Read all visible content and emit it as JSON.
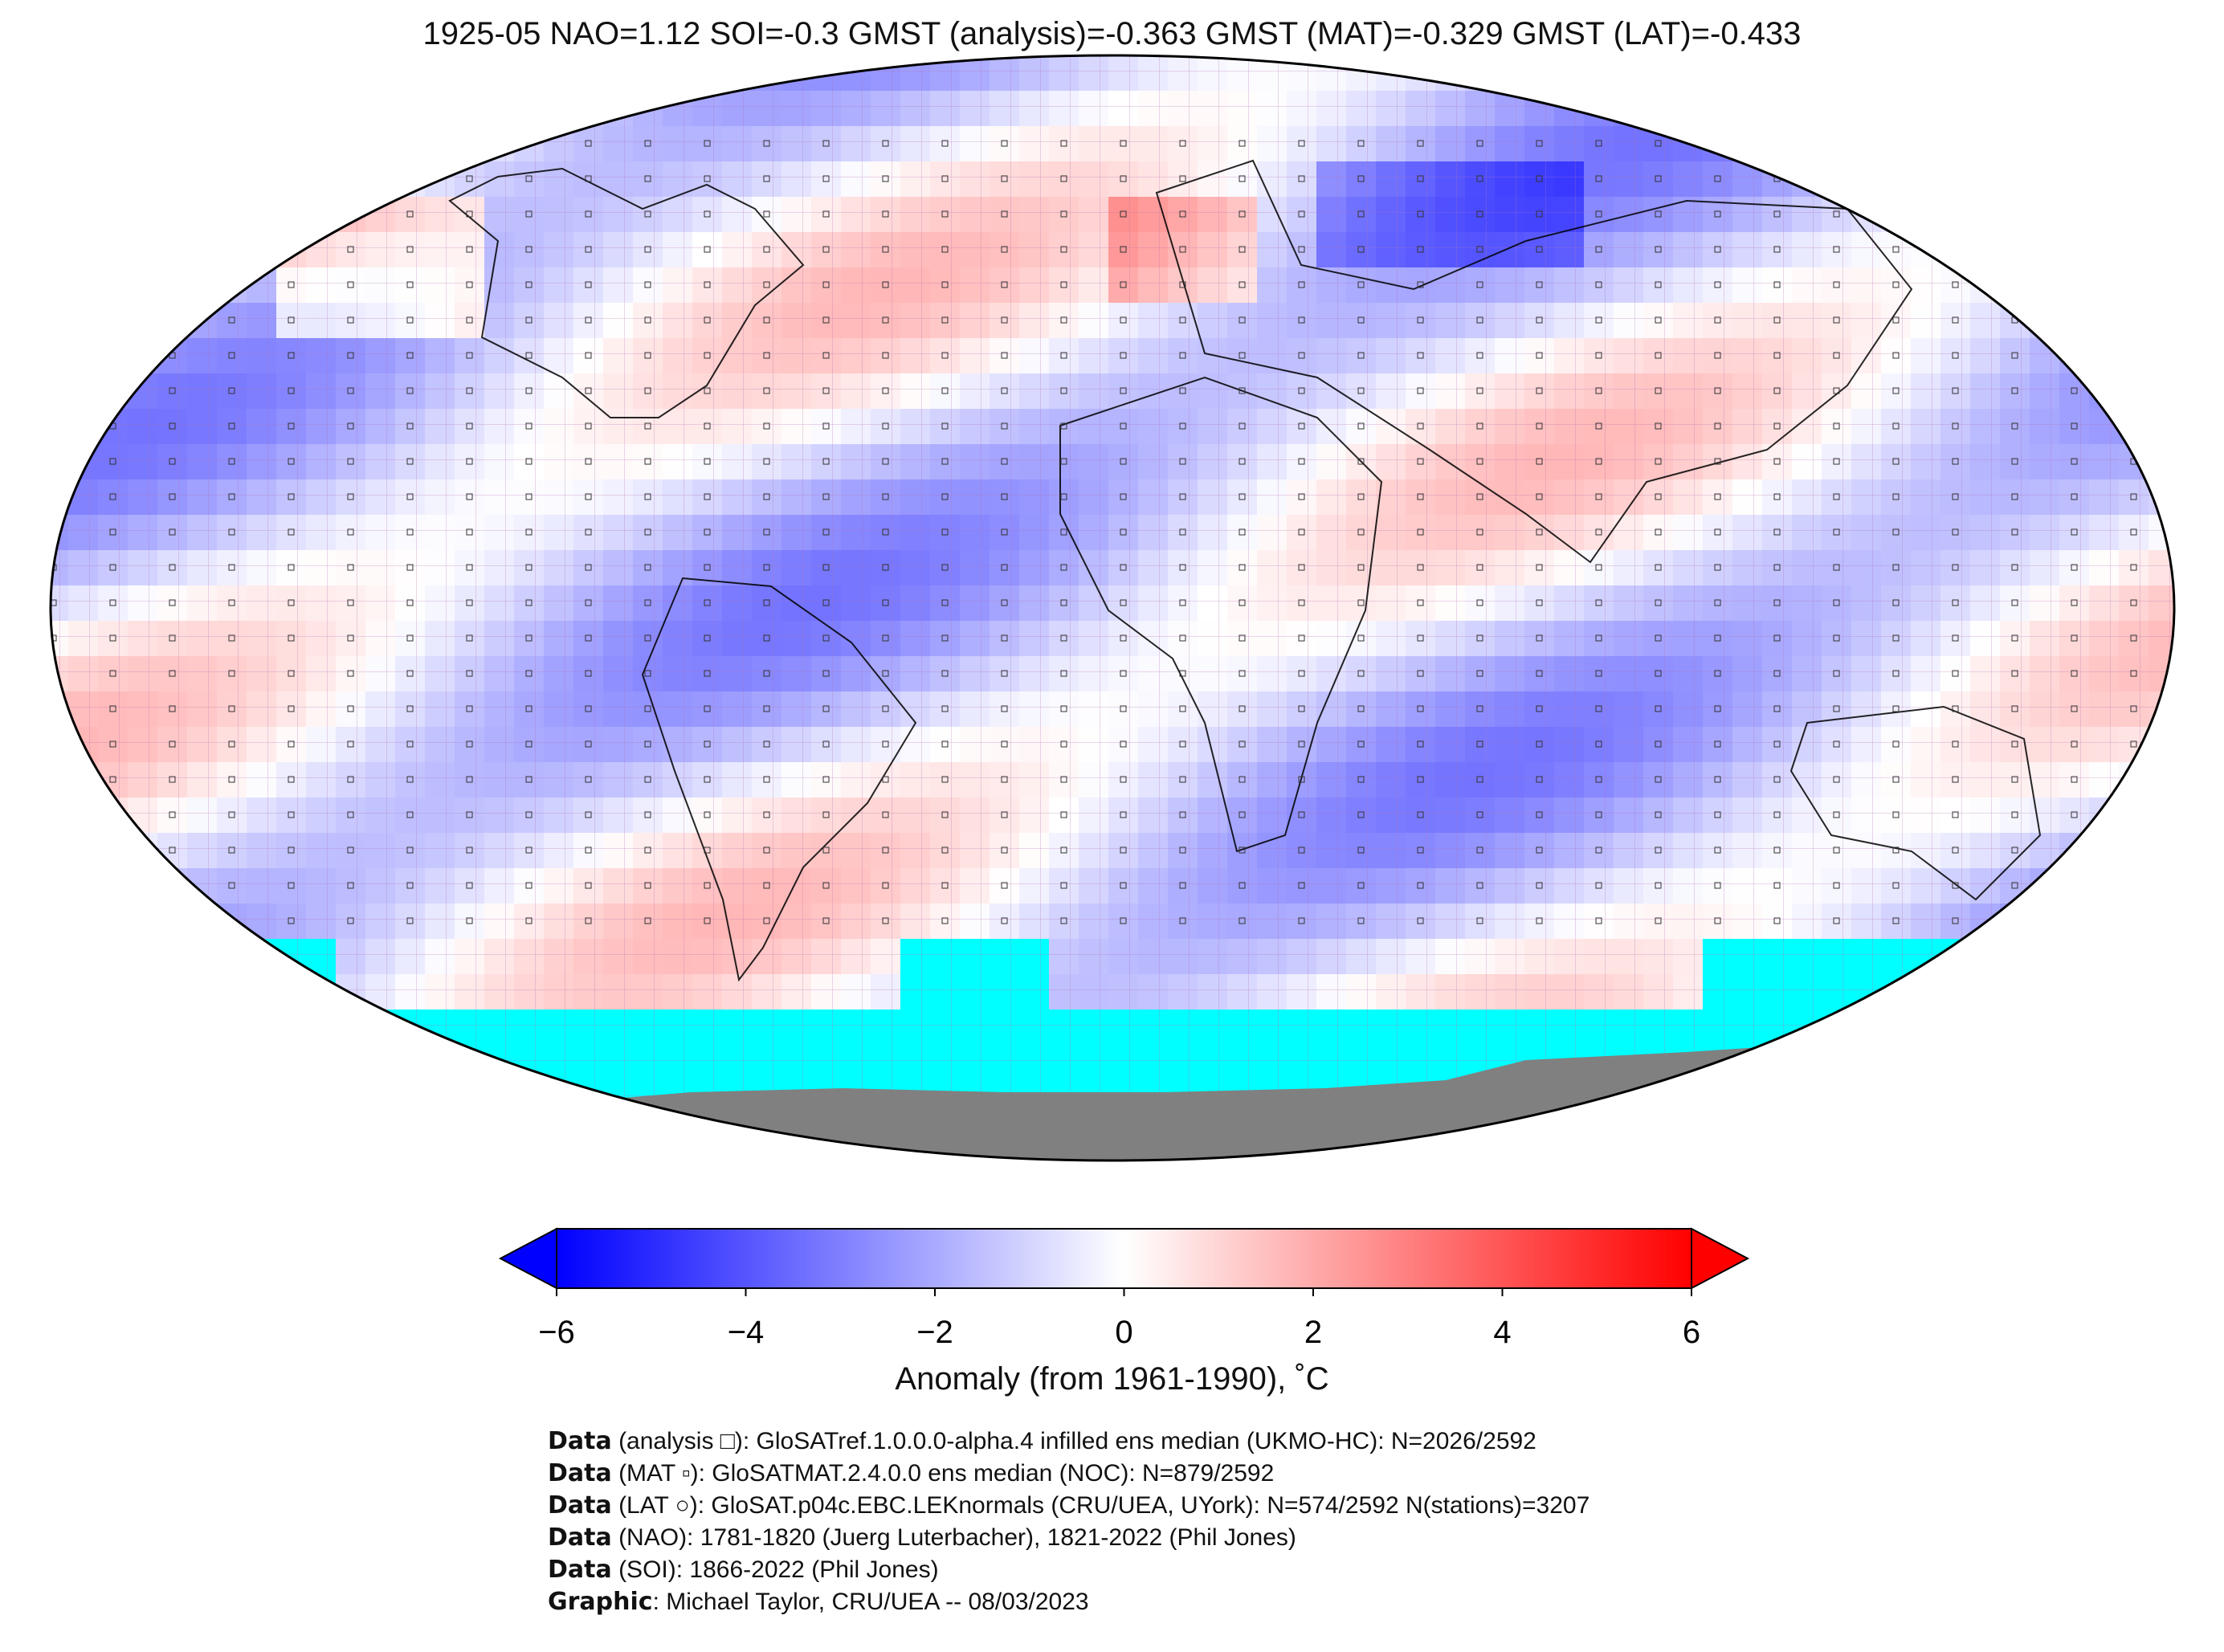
{
  "title": "1925-05 NAO=1.12 SOI=-0.3 GMST (analysis)=-0.363 GMST (MAT)=-0.329 GMST (LAT)=-0.433",
  "colorbar": {
    "label": "Anomaly (from 1961-1990), ˚C",
    "min": -6,
    "max": 6,
    "ticks": [
      "−6",
      "−4",
      "−2",
      "0",
      "2",
      "4",
      "6"
    ],
    "colors": {
      "low": "#0000ff",
      "mid": "#ffffff",
      "high": "#ff0000"
    },
    "extend": "both"
  },
  "map": {
    "projection": "Robinson",
    "grid": "5° x 5°",
    "colors": {
      "no_data": "#00ffff",
      "land_mask": "#808080",
      "gridlines": "#b070b0",
      "coastlines": "#000000"
    },
    "markers": [
      "analysis-square",
      "mat-square",
      "lat-circle"
    ]
  },
  "credits": [
    {
      "bold": "Data",
      "text": " (analysis □): GloSATref.1.0.0.0-alpha.4 infilled ens median (UKMO-HC): N=2026/2592"
    },
    {
      "bold": "Data",
      "text": " (MAT ▫): GloSATMAT.2.4.0.0 ens median (NOC): N=879/2592"
    },
    {
      "bold": "Data",
      "text": " (LAT ○): GloSAT.p04c.EBC.LEKnormals (CRU/UEA, UYork): N=574/2592 N(stations)=3207"
    },
    {
      "bold": "Data",
      "text": " (NAO): 1781-1820 (Juerg Luterbacher), 1821-2022 (Phil Jones)"
    },
    {
      "bold": "Data",
      "text": " (SOI): 1866-2022 (Phil Jones)"
    },
    {
      "bold": "Graphic",
      "text": ": Michael Taylor, CRU/UEA -- 08/03/2023"
    }
  ]
}
